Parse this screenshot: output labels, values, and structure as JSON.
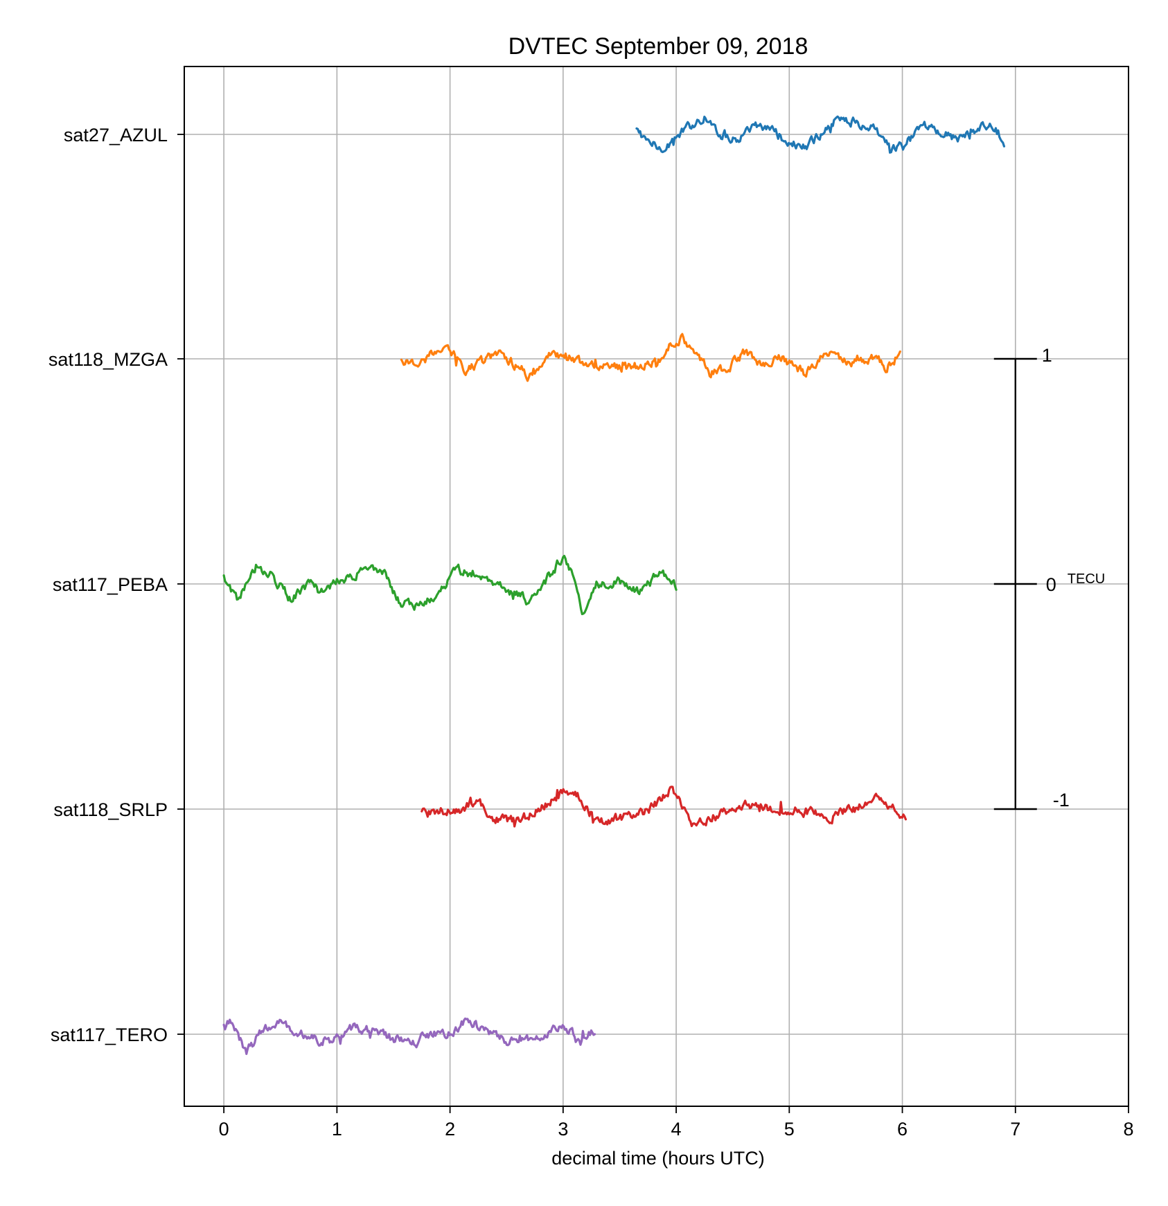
{
  "chart_data": {
    "type": "line",
    "title": "DVTEC September 09, 2018",
    "xlabel": "decimal time (hours UTC)",
    "ylabel": "",
    "xlim": [
      -0.35,
      8
    ],
    "x_ticks": [
      "0",
      "1",
      "2",
      "3",
      "4",
      "5",
      "6",
      "7",
      "8"
    ],
    "grid": true,
    "series": [
      {
        "name": "sat27_AZUL",
        "color": "#1f77b4",
        "x_start": 3.65,
        "x_end": 6.9,
        "waypoints": [
          [
            3.65,
            0.02
          ],
          [
            3.75,
            -0.03
          ],
          [
            3.85,
            -0.06
          ],
          [
            4.0,
            -0.02
          ],
          [
            4.1,
            0.03
          ],
          [
            4.25,
            0.08
          ],
          [
            4.4,
            0.0
          ],
          [
            4.55,
            -0.02
          ],
          [
            4.7,
            0.03
          ],
          [
            4.85,
            0.02
          ],
          [
            5.0,
            -0.04
          ],
          [
            5.15,
            -0.06
          ],
          [
            5.3,
            0.01
          ],
          [
            5.45,
            0.08
          ],
          [
            5.6,
            0.05
          ],
          [
            5.75,
            0.02
          ],
          [
            5.9,
            -0.07
          ],
          [
            6.05,
            -0.03
          ],
          [
            6.2,
            0.03
          ],
          [
            6.35,
            0.01
          ],
          [
            6.5,
            -0.02
          ],
          [
            6.65,
            0.02
          ],
          [
            6.8,
            0.04
          ],
          [
            6.9,
            -0.03
          ]
        ]
      },
      {
        "name": "sat118_MZGA",
        "color": "#ff7f0e",
        "x_start": 1.57,
        "x_end": 5.98,
        "waypoints": [
          [
            1.57,
            -0.01
          ],
          [
            1.7,
            -0.03
          ],
          [
            1.85,
            0.02
          ],
          [
            2.0,
            0.03
          ],
          [
            2.15,
            -0.05
          ],
          [
            2.3,
            -0.01
          ],
          [
            2.45,
            0.02
          ],
          [
            2.6,
            -0.03
          ],
          [
            2.7,
            -0.08
          ],
          [
            2.85,
            0.01
          ],
          [
            3.0,
            0.02
          ],
          [
            3.15,
            -0.02
          ],
          [
            3.3,
            -0.03
          ],
          [
            3.5,
            -0.04
          ],
          [
            3.7,
            -0.03
          ],
          [
            3.85,
            -0.01
          ],
          [
            3.95,
            0.06
          ],
          [
            4.05,
            0.1
          ],
          [
            4.15,
            0.04
          ],
          [
            4.3,
            -0.06
          ],
          [
            4.45,
            -0.04
          ],
          [
            4.6,
            0.02
          ],
          [
            4.75,
            -0.02
          ],
          [
            4.9,
            0.01
          ],
          [
            5.05,
            -0.03
          ],
          [
            5.15,
            -0.07
          ],
          [
            5.3,
            0.02
          ],
          [
            5.45,
            0.0
          ],
          [
            5.6,
            -0.02
          ],
          [
            5.75,
            0.01
          ],
          [
            5.85,
            -0.04
          ],
          [
            5.98,
            0.02
          ]
        ]
      },
      {
        "name": "sat117_PEBA",
        "color": "#2ca02c",
        "x_start": 0.0,
        "x_end": 4.0,
        "waypoints": [
          [
            0.0,
            0.03
          ],
          [
            0.12,
            -0.08
          ],
          [
            0.3,
            0.09
          ],
          [
            0.45,
            0.02
          ],
          [
            0.6,
            -0.06
          ],
          [
            0.75,
            0.0
          ],
          [
            0.9,
            -0.05
          ],
          [
            1.0,
            0.02
          ],
          [
            1.2,
            0.05
          ],
          [
            1.4,
            0.06
          ],
          [
            1.55,
            -0.08
          ],
          [
            1.75,
            -0.1
          ],
          [
            1.9,
            -0.04
          ],
          [
            2.05,
            0.06
          ],
          [
            2.2,
            0.05
          ],
          [
            2.4,
            0.01
          ],
          [
            2.55,
            -0.04
          ],
          [
            2.7,
            -0.07
          ],
          [
            2.85,
            0.02
          ],
          [
            3.0,
            0.12
          ],
          [
            3.1,
            0.02
          ],
          [
            3.17,
            -0.13
          ],
          [
            3.3,
            0.0
          ],
          [
            3.5,
            0.01
          ],
          [
            3.7,
            -0.04
          ],
          [
            3.85,
            0.05
          ],
          [
            4.0,
            -0.01
          ]
        ]
      },
      {
        "name": "sat118_SRLP",
        "color": "#d62728",
        "x_start": 1.75,
        "x_end": 6.03,
        "waypoints": [
          [
            1.75,
            -0.02
          ],
          [
            1.9,
            -0.01
          ],
          [
            2.1,
            0.0
          ],
          [
            2.25,
            0.03
          ],
          [
            2.4,
            -0.04
          ],
          [
            2.55,
            -0.05
          ],
          [
            2.7,
            -0.03
          ],
          [
            2.85,
            0.02
          ],
          [
            3.0,
            0.08
          ],
          [
            3.15,
            0.05
          ],
          [
            3.3,
            -0.06
          ],
          [
            3.5,
            -0.04
          ],
          [
            3.65,
            -0.03
          ],
          [
            3.8,
            0.01
          ],
          [
            3.95,
            0.09
          ],
          [
            4.05,
            0.02
          ],
          [
            4.15,
            -0.07
          ],
          [
            4.35,
            -0.03
          ],
          [
            4.55,
            0.01
          ],
          [
            4.7,
            0.02
          ],
          [
            4.85,
            -0.01
          ],
          [
            5.0,
            0.0
          ],
          [
            5.15,
            -0.01
          ],
          [
            5.35,
            -0.04
          ],
          [
            5.55,
            0.0
          ],
          [
            5.75,
            0.05
          ],
          [
            5.9,
            0.01
          ],
          [
            6.03,
            -0.03
          ]
        ]
      },
      {
        "name": "sat117_TERO",
        "color": "#9467bd",
        "x_start": 0.0,
        "x_end": 3.28,
        "waypoints": [
          [
            0.0,
            0.03
          ],
          [
            0.05,
            0.06
          ],
          [
            0.2,
            -0.08
          ],
          [
            0.35,
            0.02
          ],
          [
            0.5,
            0.06
          ],
          [
            0.65,
            0.0
          ],
          [
            0.8,
            -0.02
          ],
          [
            0.95,
            -0.03
          ],
          [
            1.1,
            0.03
          ],
          [
            1.3,
            0.02
          ],
          [
            1.5,
            -0.02
          ],
          [
            1.7,
            -0.03
          ],
          [
            1.85,
            0.01
          ],
          [
            2.0,
            0.0
          ],
          [
            2.15,
            0.07
          ],
          [
            2.3,
            0.02
          ],
          [
            2.45,
            -0.03
          ],
          [
            2.6,
            -0.04
          ],
          [
            2.75,
            -0.01
          ],
          [
            2.9,
            0.02
          ],
          [
            3.0,
            0.05
          ],
          [
            3.15,
            -0.03
          ],
          [
            3.28,
            0.01
          ]
        ]
      }
    ],
    "scale_bar": {
      "x": 7,
      "labels": [
        "1",
        "0",
        "-1"
      ],
      "unit": "TECU",
      "spacing_tecu": 1
    }
  }
}
